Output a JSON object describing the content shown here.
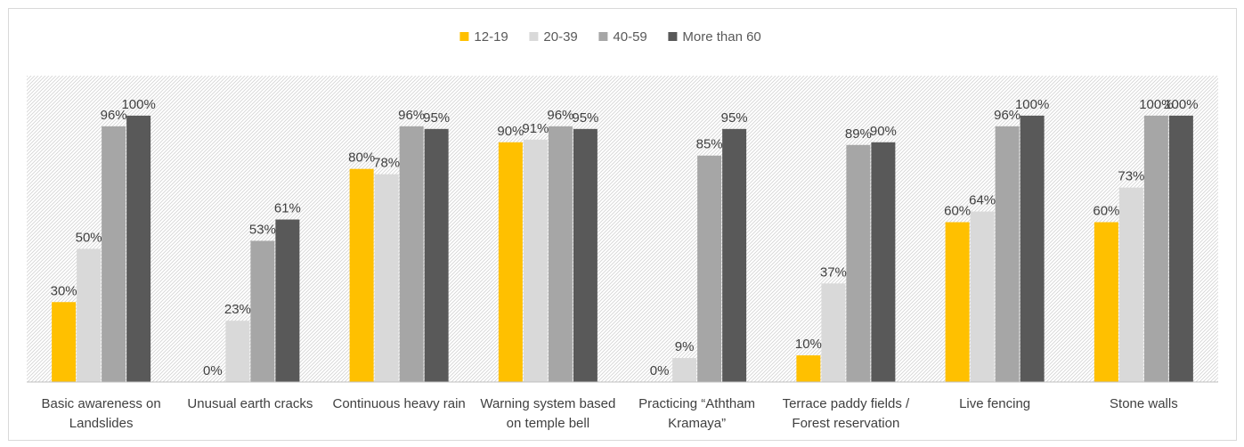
{
  "chart_data": {
    "type": "bar",
    "title": "",
    "xlabel": "",
    "ylabel": "",
    "ylim": [
      0,
      115
    ],
    "grid": false,
    "legend_position": "top-center",
    "categories": [
      [
        "Basic awareness on",
        "Landslides"
      ],
      [
        "Unusual earth cracks"
      ],
      [
        "Continuous heavy rain"
      ],
      [
        "Warning system based",
        "on temple bell"
      ],
      [
        "Practicing “Aththam",
        "Kramaya”"
      ],
      [
        "Terrace paddy fields /",
        "Forest reservation"
      ],
      [
        "Live fencing"
      ],
      [
        "Stone walls"
      ]
    ],
    "series": [
      {
        "name": "12-19",
        "color": "#ffc000",
        "values": [
          30,
          0,
          80,
          90,
          0,
          10,
          60,
          60
        ]
      },
      {
        "name": "20-39",
        "color": "#d9d9d9",
        "values": [
          50,
          23,
          78,
          91,
          9,
          37,
          64,
          73
        ]
      },
      {
        "name": "40-59",
        "color": "#a6a6a6",
        "values": [
          96,
          53,
          96,
          96,
          85,
          89,
          96,
          100
        ]
      },
      {
        "name": "More than 60",
        "color": "#595959",
        "values": [
          100,
          61,
          95,
          95,
          95,
          90,
          100,
          100
        ]
      }
    ],
    "value_suffix": "%"
  }
}
